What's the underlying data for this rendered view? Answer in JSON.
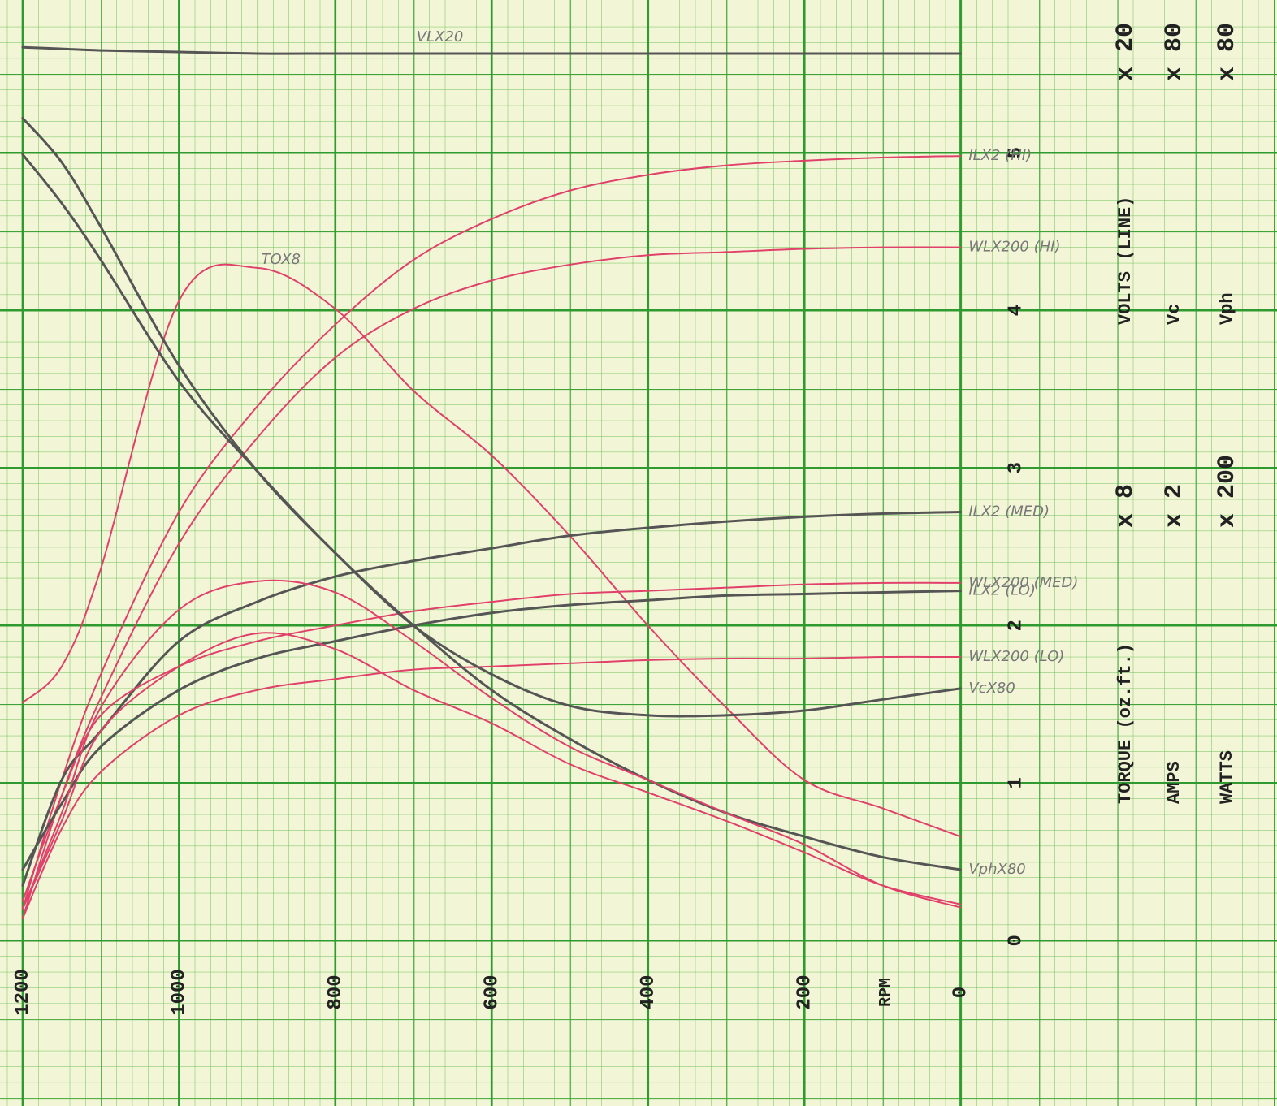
{
  "chart_data": {
    "type": "line",
    "x_label": "RPM",
    "x": [
      1200,
      1150,
      1100,
      1000,
      900,
      800,
      700,
      600,
      500,
      400,
      300,
      200,
      100,
      0
    ],
    "xlim": [
      1229,
      -405
    ],
    "xticks": [
      0,
      200,
      400,
      600,
      800,
      1000,
      1200
    ],
    "ylim": [
      -1.05,
      5.97
    ],
    "yticks": [
      0,
      1,
      2,
      3,
      4,
      5
    ],
    "grid": true,
    "series": [
      {
        "name": "VLX20",
        "color": "#555555",
        "values": [
          5.67,
          5.66,
          5.65,
          5.64,
          5.63,
          5.63,
          5.63,
          5.63,
          5.63,
          5.63,
          5.63,
          5.63,
          5.63,
          5.63
        ]
      },
      {
        "name": "ILX2 (HI)",
        "color": "#e0406a",
        "values": [
          0.2,
          1.02,
          1.69,
          2.72,
          3.39,
          3.91,
          4.32,
          4.58,
          4.76,
          4.86,
          4.92,
          4.95,
          4.97,
          4.98
        ]
      },
      {
        "name": "WLX200 (HI)",
        "color": "#e0406a",
        "values": [
          0.14,
          0.92,
          1.54,
          2.52,
          3.19,
          3.7,
          4.01,
          4.19,
          4.29,
          4.35,
          4.37,
          4.39,
          4.4,
          4.4
        ]
      },
      {
        "name": "TOX8",
        "color": "#e0406a",
        "values": [
          1.51,
          1.74,
          2.36,
          4.06,
          4.27,
          4.01,
          3.49,
          3.08,
          2.57,
          2.0,
          1.48,
          1.02,
          0.84,
          0.66
        ]
      },
      {
        "name": "ILX2 (MED)",
        "color": "#555555",
        "values": [
          0.35,
          1.02,
          1.33,
          1.9,
          2.15,
          2.31,
          2.41,
          2.49,
          2.57,
          2.62,
          2.66,
          2.69,
          2.71,
          2.72
        ]
      },
      {
        "name": "WLX200 (MED)",
        "color": "#e0406a",
        "values": [
          0.25,
          0.92,
          1.43,
          1.74,
          1.9,
          2.0,
          2.09,
          2.15,
          2.2,
          2.22,
          2.24,
          2.26,
          2.27,
          2.27
        ]
      },
      {
        "name": "ILX2 (LO)",
        "color": "#555555",
        "values": [
          0.45,
          0.87,
          1.23,
          1.59,
          1.79,
          1.9,
          2.0,
          2.08,
          2.13,
          2.16,
          2.19,
          2.2,
          2.21,
          2.22
        ]
      },
      {
        "name": "WLX200 (LO)",
        "color": "#e0406a",
        "values": [
          0.14,
          0.71,
          1.07,
          1.43,
          1.59,
          1.66,
          1.72,
          1.74,
          1.76,
          1.78,
          1.79,
          1.79,
          1.8,
          1.8
        ]
      },
      {
        "name": "VcX80",
        "color": "#555555",
        "values": [
          5.22,
          4.94,
          4.53,
          3.65,
          2.98,
          2.46,
          2.0,
          1.69,
          1.49,
          1.43,
          1.43,
          1.46,
          1.53,
          1.6
        ]
      },
      {
        "name": "VphX80",
        "color": "#555555",
        "values": [
          4.99,
          4.68,
          4.32,
          3.55,
          2.98,
          2.46,
          2.0,
          1.59,
          1.28,
          1.02,
          0.81,
          0.66,
          0.53,
          0.45
        ]
      },
      {
        "color": "#e0406a",
        "values": [
          0.2,
          0.81,
          1.48,
          2.1,
          2.28,
          2.21,
          1.9,
          1.54,
          1.23,
          1.02,
          0.81,
          0.61,
          0.35,
          0.21
        ]
      },
      {
        "color": "#e0406a",
        "values": [
          0.2,
          0.76,
          1.33,
          1.74,
          1.95,
          1.85,
          1.59,
          1.38,
          1.12,
          0.94,
          0.76,
          0.56,
          0.35,
          0.23
        ]
      }
    ],
    "scales": [
      {
        "quantity": "TORQUE (oz.ft.)",
        "factor": "x 8"
      },
      {
        "quantity": "AMPS",
        "factor": "x 2"
      },
      {
        "quantity": "WATTS",
        "factor": "x 200"
      },
      {
        "quantity": "VOLTS (LINE)",
        "factor": "x 20"
      },
      {
        "quantity": "Vc",
        "factor": "x 80"
      },
      {
        "quantity": "Vph",
        "factor": "x 80"
      }
    ]
  }
}
